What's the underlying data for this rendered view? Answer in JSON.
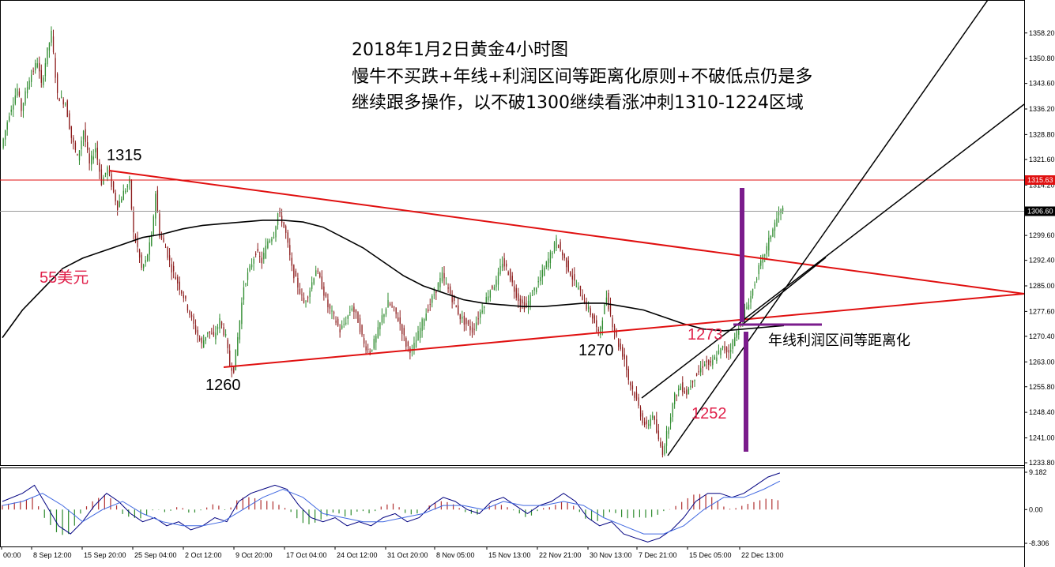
{
  "chart_data": {
    "type": "candlestick",
    "instrument_note": "",
    "price_axis": {
      "ylim": [
        1233.8,
        1361.8
      ],
      "ticks": [
        "1358.20",
        "1350.80",
        "1343.60",
        "1336.20",
        "1328.80",
        "1321.60",
        "1314.20",
        "1306.80",
        "1299.60",
        "1292.40",
        "1285.00",
        "1277.60",
        "1270.40",
        "1263.00",
        "1255.80",
        "1248.40",
        "1241.00",
        "1233.80"
      ],
      "current_price_label": "1306.60",
      "current_price": 1306.6,
      "ref_price_label": "1315.63",
      "ref_price": 1315.63
    },
    "time_axis": {
      "ticks": [
        "00:00",
        "8 Sep 12:00",
        "15 Sep 20:00",
        "25 Sep 04:00",
        "2 Oct 12:00",
        "9 Oct 20:00",
        "17 Oct 04:00",
        "24 Oct 12:00",
        "31 Oct 20:00",
        "8 Nov 05:00",
        "15 Nov 13:00",
        "22 Nov 21:00",
        "30 Nov 13:00",
        "7 Dec 21:00",
        "15 Dec 05:00",
        "22 Dec 13:00"
      ]
    },
    "price_path": [
      [
        0,
        1325
      ],
      [
        4,
        1335
      ],
      [
        8,
        1342
      ],
      [
        10,
        1336
      ],
      [
        14,
        1345
      ],
      [
        18,
        1350
      ],
      [
        20,
        1343
      ],
      [
        23,
        1353
      ],
      [
        25,
        1358
      ],
      [
        28,
        1340
      ],
      [
        32,
        1338
      ],
      [
        35,
        1328
      ],
      [
        38,
        1322
      ],
      [
        41,
        1330
      ],
      [
        44,
        1320
      ],
      [
        47,
        1325
      ],
      [
        50,
        1315
      ],
      [
        53,
        1319
      ],
      [
        56,
        1312
      ],
      [
        58,
        1308
      ],
      [
        61,
        1312
      ],
      [
        64,
        1315
      ],
      [
        66,
        1300
      ],
      [
        68,
        1296
      ],
      [
        70,
        1290
      ],
      [
        72,
        1292
      ],
      [
        75,
        1299
      ],
      [
        77,
        1312
      ],
      [
        79,
        1300
      ],
      [
        82,
        1296
      ],
      [
        85,
        1290
      ],
      [
        88,
        1286
      ],
      [
        91,
        1282
      ],
      [
        94,
        1277
      ],
      [
        97,
        1272
      ],
      [
        100,
        1268
      ],
      [
        103,
        1272
      ],
      [
        106,
        1270
      ],
      [
        109,
        1275
      ],
      [
        112,
        1270
      ],
      [
        114,
        1262
      ],
      [
        116,
        1261
      ],
      [
        118,
        1270
      ],
      [
        121,
        1285
      ],
      [
        124,
        1290
      ],
      [
        127,
        1295
      ],
      [
        130,
        1292
      ],
      [
        133,
        1298
      ],
      [
        136,
        1300
      ],
      [
        138,
        1306
      ],
      [
        140,
        1304
      ],
      [
        142,
        1300
      ],
      [
        145,
        1290
      ],
      [
        148,
        1285
      ],
      [
        151,
        1280
      ],
      [
        154,
        1284
      ],
      [
        157,
        1290
      ],
      [
        160,
        1285
      ],
      [
        163,
        1279
      ],
      [
        166,
        1276
      ],
      [
        169,
        1272
      ],
      [
        172,
        1275
      ],
      [
        175,
        1279
      ],
      [
        178,
        1275
      ],
      [
        181,
        1268
      ],
      [
        184,
        1266
      ],
      [
        187,
        1270
      ],
      [
        190,
        1276
      ],
      [
        193,
        1280
      ],
      [
        196,
        1278
      ],
      [
        199,
        1274
      ],
      [
        202,
        1268
      ],
      [
        205,
        1266
      ],
      [
        208,
        1271
      ],
      [
        211,
        1276
      ],
      [
        214,
        1280
      ],
      [
        217,
        1284
      ],
      [
        220,
        1288
      ],
      [
        223,
        1284
      ],
      [
        226,
        1280
      ],
      [
        229,
        1276
      ],
      [
        232,
        1274
      ],
      [
        235,
        1272
      ],
      [
        238,
        1276
      ],
      [
        241,
        1280
      ],
      [
        244,
        1284
      ],
      [
        247,
        1286
      ],
      [
        250,
        1292
      ],
      [
        253,
        1289
      ],
      [
        256,
        1284
      ],
      [
        259,
        1280
      ],
      [
        262,
        1279
      ],
      [
        265,
        1283
      ],
      [
        268,
        1286
      ],
      [
        271,
        1290
      ],
      [
        274,
        1294
      ],
      [
        277,
        1298
      ],
      [
        280,
        1294
      ],
      [
        283,
        1290
      ],
      [
        286,
        1286
      ],
      [
        289,
        1283
      ],
      [
        292,
        1279
      ],
      [
        295,
        1276
      ],
      [
        298,
        1271
      ],
      [
        300,
        1276
      ],
      [
        302,
        1282
      ],
      [
        305,
        1274
      ],
      [
        308,
        1268
      ],
      [
        311,
        1264
      ],
      [
        313,
        1258
      ],
      [
        315,
        1255
      ],
      [
        318,
        1250
      ],
      [
        320,
        1246
      ],
      [
        322,
        1244
      ],
      [
        325,
        1248
      ],
      [
        328,
        1240
      ],
      [
        330,
        1237
      ],
      [
        332,
        1242
      ],
      [
        334,
        1248
      ],
      [
        336,
        1253
      ],
      [
        339,
        1256
      ],
      [
        342,
        1254
      ],
      [
        345,
        1258
      ],
      [
        348,
        1260
      ],
      [
        351,
        1263
      ],
      [
        354,
        1262
      ],
      [
        357,
        1265
      ],
      [
        360,
        1267
      ],
      [
        363,
        1266
      ],
      [
        366,
        1270
      ],
      [
        368,
        1273
      ],
      [
        370,
        1276
      ],
      [
        372,
        1279
      ],
      [
        374,
        1282
      ],
      [
        376,
        1286
      ],
      [
        378,
        1290
      ],
      [
        380,
        1293
      ],
      [
        382,
        1296
      ],
      [
        384,
        1300
      ],
      [
        386,
        1303
      ],
      [
        388,
        1306
      ],
      [
        390,
        1307
      ]
    ],
    "ma_path": [
      [
        0,
        1270
      ],
      [
        10,
        1278
      ],
      [
        20,
        1284
      ],
      [
        30,
        1290
      ],
      [
        40,
        1293
      ],
      [
        50,
        1295
      ],
      [
        60,
        1297
      ],
      [
        70,
        1299
      ],
      [
        80,
        1300
      ],
      [
        90,
        1301.5
      ],
      [
        100,
        1302.5
      ],
      [
        110,
        1303
      ],
      [
        120,
        1303.5
      ],
      [
        130,
        1304
      ],
      [
        140,
        1304
      ],
      [
        150,
        1303.5
      ],
      [
        160,
        1302
      ],
      [
        170,
        1299
      ],
      [
        180,
        1296
      ],
      [
        190,
        1292
      ],
      [
        200,
        1288
      ],
      [
        210,
        1285
      ],
      [
        220,
        1283
      ],
      [
        230,
        1281
      ],
      [
        240,
        1280
      ],
      [
        250,
        1279.5
      ],
      [
        260,
        1279
      ],
      [
        270,
        1279
      ],
      [
        280,
        1279.5
      ],
      [
        290,
        1280
      ],
      [
        300,
        1280
      ],
      [
        310,
        1279
      ],
      [
        320,
        1278
      ],
      [
        330,
        1276
      ],
      [
        340,
        1274
      ],
      [
        350,
        1272.5
      ],
      [
        360,
        1272
      ],
      [
        370,
        1272.5
      ],
      [
        380,
        1273
      ],
      [
        390,
        1273.5
      ]
    ],
    "macd": {
      "ylim": [
        -8.306,
        9.182
      ],
      "ticks": [
        "9.182",
        "0.00",
        "-8.306"
      ],
      "main_path": [
        [
          0,
          2
        ],
        [
          10,
          4
        ],
        [
          16,
          6
        ],
        [
          22,
          1
        ],
        [
          28,
          -4
        ],
        [
          34,
          -6
        ],
        [
          40,
          -3
        ],
        [
          46,
          1
        ],
        [
          52,
          4
        ],
        [
          58,
          2
        ],
        [
          64,
          -1
        ],
        [
          70,
          -3
        ],
        [
          76,
          -2
        ],
        [
          82,
          -4
        ],
        [
          88,
          -3
        ],
        [
          94,
          -5
        ],
        [
          100,
          -4
        ],
        [
          106,
          -2
        ],
        [
          112,
          -3
        ],
        [
          118,
          2
        ],
        [
          124,
          4
        ],
        [
          130,
          5
        ],
        [
          136,
          6
        ],
        [
          142,
          5
        ],
        [
          148,
          1
        ],
        [
          154,
          -2
        ],
        [
          160,
          -3
        ],
        [
          166,
          -2
        ],
        [
          172,
          -4
        ],
        [
          178,
          -3
        ],
        [
          184,
          -4
        ],
        [
          190,
          -2
        ],
        [
          196,
          -1
        ],
        [
          202,
          -3
        ],
        [
          208,
          -2
        ],
        [
          214,
          1
        ],
        [
          220,
          3
        ],
        [
          226,
          2
        ],
        [
          232,
          0
        ],
        [
          238,
          -1
        ],
        [
          244,
          2
        ],
        [
          250,
          3
        ],
        [
          256,
          1
        ],
        [
          262,
          -1
        ],
        [
          268,
          1
        ],
        [
          274,
          2
        ],
        [
          280,
          4
        ],
        [
          286,
          2
        ],
        [
          292,
          -2
        ],
        [
          298,
          -4
        ],
        [
          304,
          -3
        ],
        [
          310,
          -6
        ],
        [
          316,
          -7
        ],
        [
          322,
          -8
        ],
        [
          328,
          -7
        ],
        [
          334,
          -5
        ],
        [
          340,
          -2
        ],
        [
          346,
          2
        ],
        [
          352,
          4
        ],
        [
          358,
          4
        ],
        [
          364,
          3
        ],
        [
          370,
          4
        ],
        [
          376,
          6
        ],
        [
          382,
          8
        ],
        [
          388,
          9
        ]
      ],
      "signal_path": [
        [
          0,
          1
        ],
        [
          10,
          2
        ],
        [
          20,
          4
        ],
        [
          30,
          1
        ],
        [
          40,
          -3
        ],
        [
          50,
          0
        ],
        [
          60,
          2
        ],
        [
          70,
          -1
        ],
        [
          80,
          -3
        ],
        [
          90,
          -4
        ],
        [
          100,
          -4
        ],
        [
          110,
          -3
        ],
        [
          120,
          0
        ],
        [
          130,
          3
        ],
        [
          140,
          5
        ],
        [
          150,
          3
        ],
        [
          160,
          -1
        ],
        [
          170,
          -2
        ],
        [
          180,
          -3
        ],
        [
          190,
          -3
        ],
        [
          200,
          -2
        ],
        [
          210,
          -1
        ],
        [
          220,
          1
        ],
        [
          230,
          1
        ],
        [
          240,
          0
        ],
        [
          250,
          2
        ],
        [
          260,
          1
        ],
        [
          270,
          1
        ],
        [
          280,
          2
        ],
        [
          290,
          1
        ],
        [
          300,
          -2
        ],
        [
          310,
          -4
        ],
        [
          320,
          -6
        ],
        [
          330,
          -6
        ],
        [
          340,
          -4
        ],
        [
          350,
          0
        ],
        [
          360,
          3
        ],
        [
          370,
          3
        ],
        [
          380,
          5
        ],
        [
          388,
          7
        ]
      ]
    }
  },
  "annotations": {
    "title_line1": "2018年1月2日黄金4小时图",
    "title_line2": "慢牛不买跌+年线+利润区间等距离化原则+不破低点仍是多",
    "title_line3": "继续跟多操作，以不破1300继续看涨冲刺1310-1224区域",
    "label_1315": "1315",
    "label_1260": "1260",
    "label_1270": "1270",
    "label_1273": "1273",
    "label_1252": "1252",
    "label_55": "55美元",
    "label_ma_note": "年线利润区间等距离化"
  },
  "colors": {
    "bull": "#2e8b2e",
    "bear": "#8b1a1a",
    "trend_red": "#e01010",
    "trend_black": "#000000",
    "purple": "#7b1c8c",
    "label_red": "#e0204a",
    "macd_main": "#000080",
    "macd_signal": "#4169e1"
  }
}
